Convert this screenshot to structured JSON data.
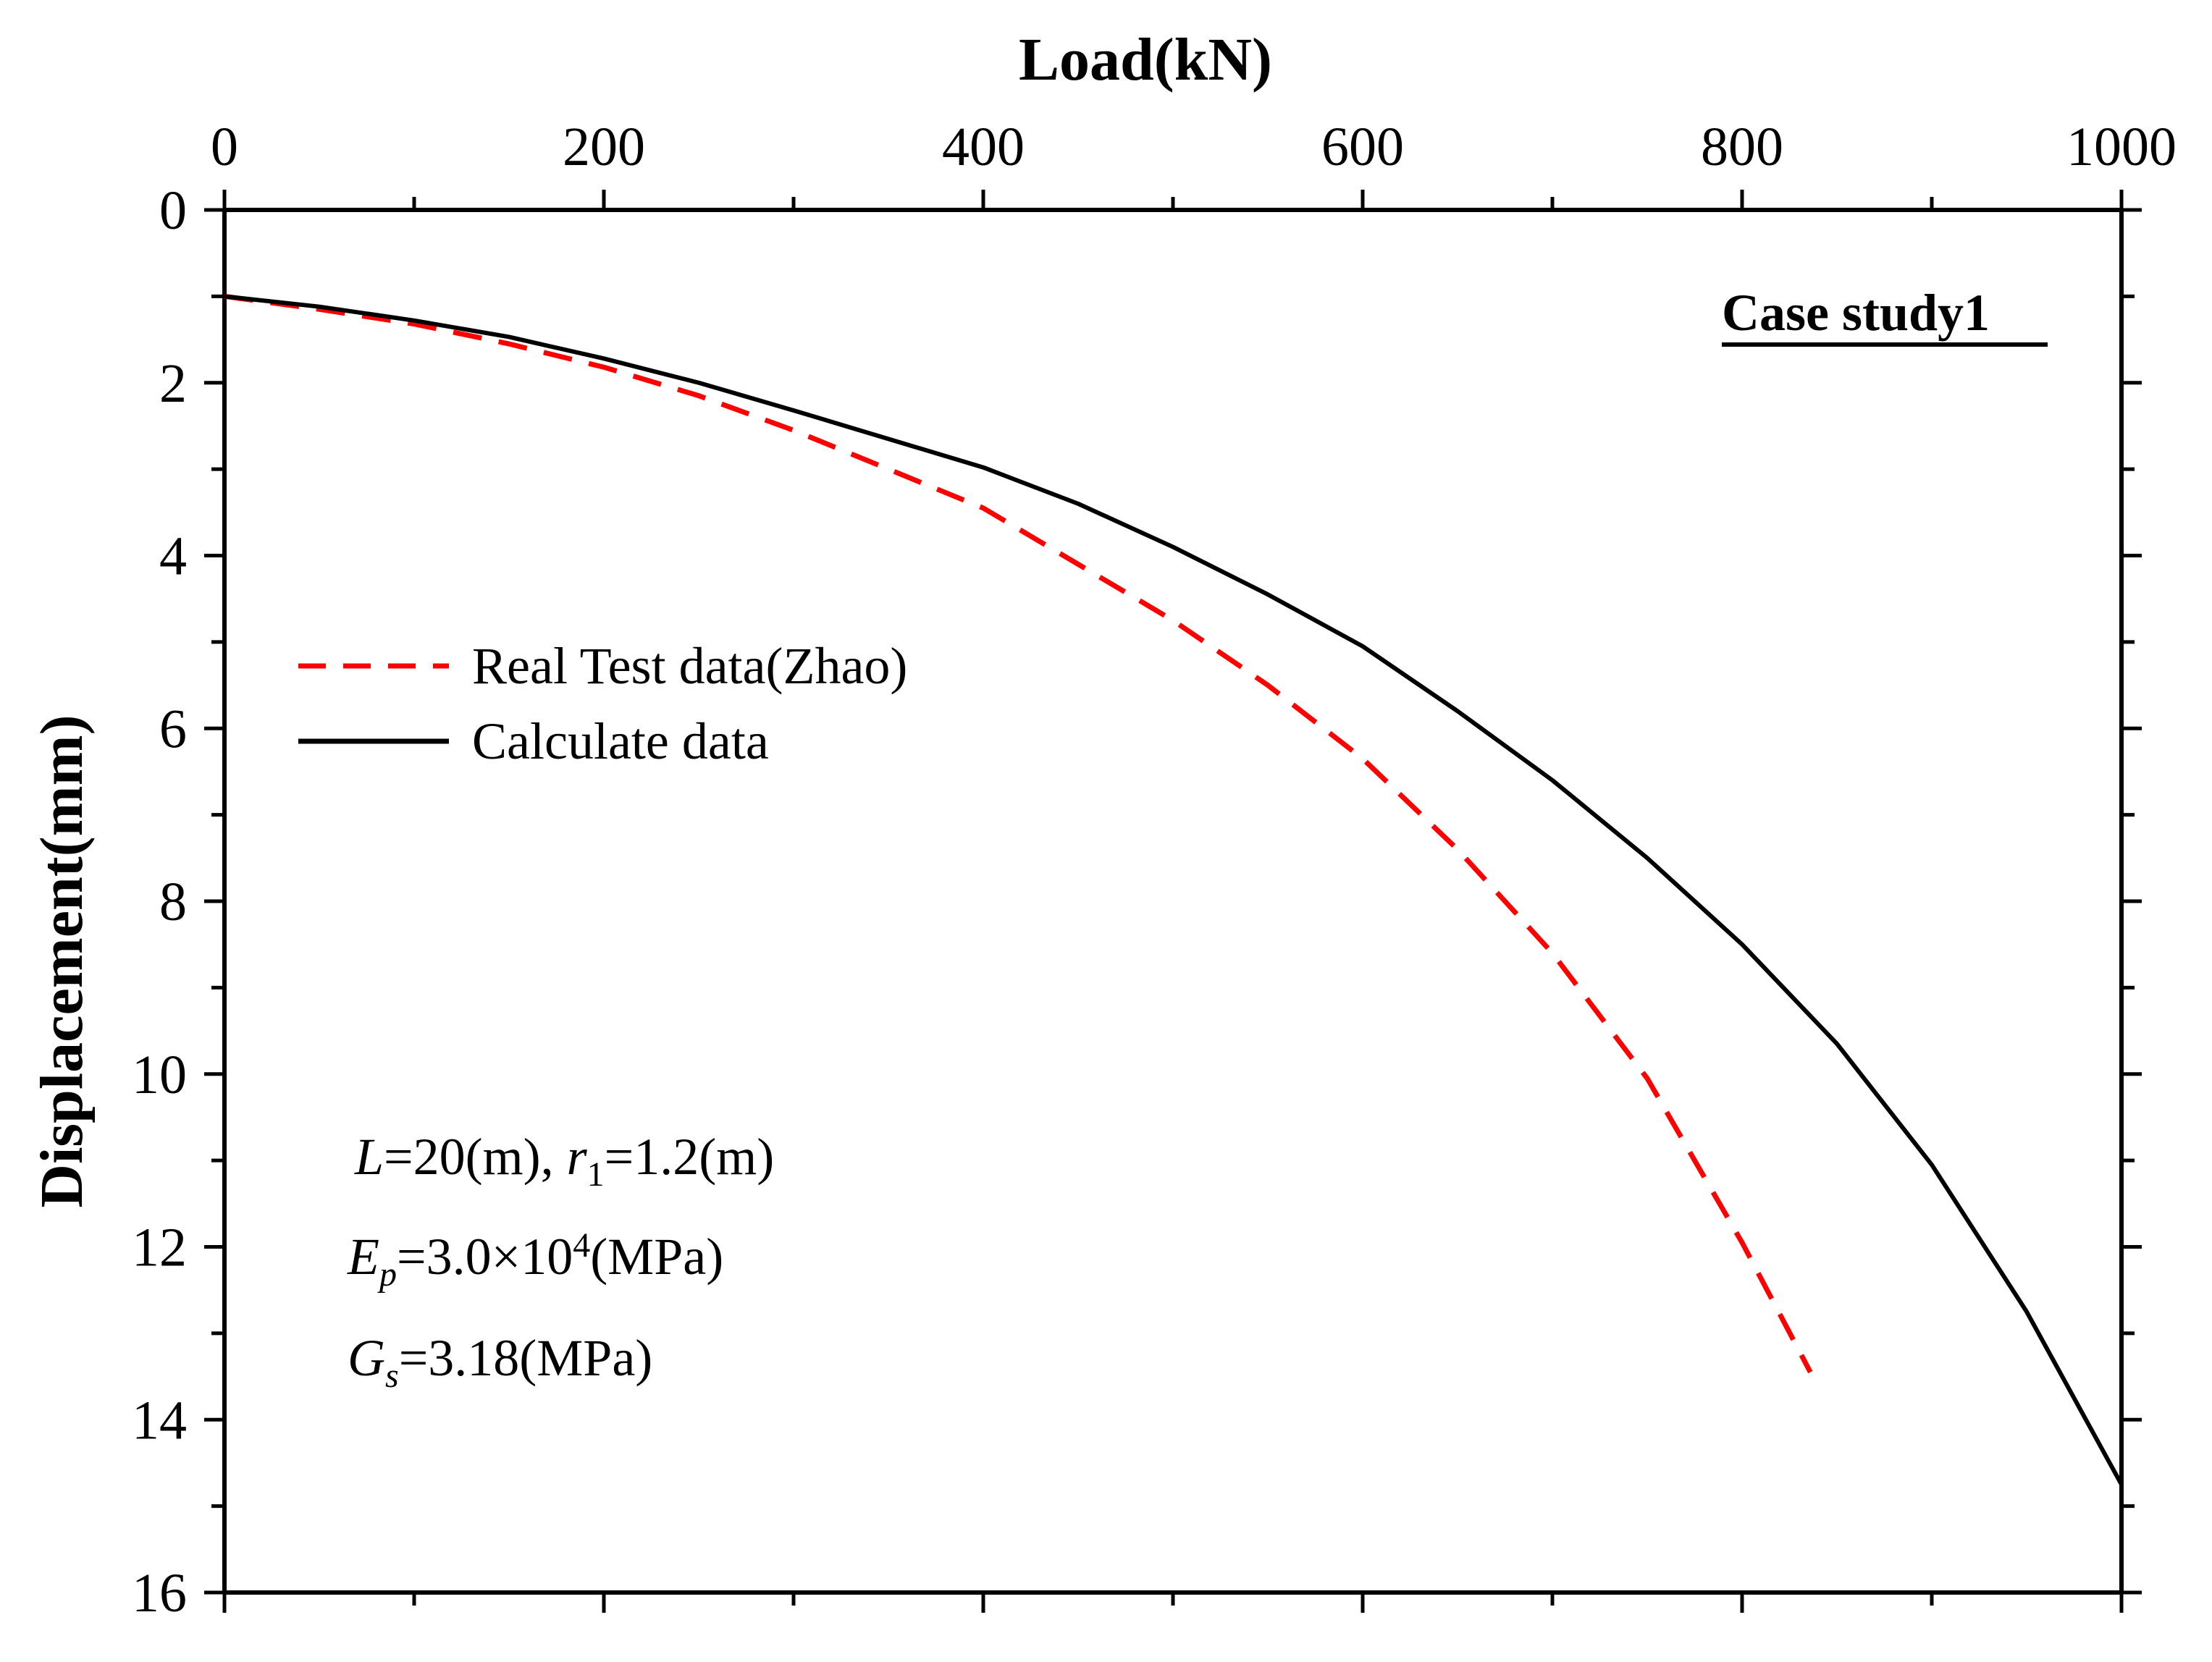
{
  "chart_data": {
    "type": "line",
    "title": "",
    "xlabel": "Load(kN)",
    "ylabel": "Displacement(mm)",
    "xlim": [
      0,
      1000
    ],
    "ylim": [
      16,
      0
    ],
    "x_axis_position": "top",
    "y_axis_inverted": true,
    "xticks": [
      0,
      200,
      400,
      600,
      800,
      1000
    ],
    "xtick_labels": [
      "0",
      "200",
      "400",
      "600",
      "800",
      "1000"
    ],
    "yticks": [
      0,
      2,
      4,
      6,
      8,
      10,
      12,
      14,
      16
    ],
    "ytick_labels": [
      "0",
      "2",
      "4",
      "6",
      "8",
      "10",
      "12",
      "14",
      "16"
    ],
    "grid": false,
    "legend_position": "left",
    "case_label": "Case study1",
    "series": [
      {
        "name": "Real Test data(Zhao)",
        "style": "dashed",
        "color": "#ff0000",
        "x": [
          0,
          50,
          100,
          150,
          200,
          250,
          300,
          350,
          400,
          450,
          500,
          550,
          600,
          650,
          700,
          750,
          800,
          836
        ],
        "y": [
          1.0,
          1.15,
          1.32,
          1.55,
          1.82,
          2.15,
          2.55,
          3.0,
          3.45,
          4.1,
          4.75,
          5.5,
          6.35,
          7.4,
          8.6,
          10.05,
          11.95,
          13.45
        ]
      },
      {
        "name": "Calculate data",
        "style": "solid",
        "color": "#000000",
        "x": [
          0,
          50,
          100,
          150,
          200,
          250,
          300,
          350,
          400,
          450,
          500,
          550,
          600,
          650,
          700,
          750,
          800,
          850,
          900,
          950,
          1000
        ],
        "y": [
          1.0,
          1.12,
          1.28,
          1.47,
          1.72,
          2.0,
          2.32,
          2.65,
          2.98,
          3.4,
          3.9,
          4.45,
          5.05,
          5.8,
          6.6,
          7.5,
          8.5,
          9.65,
          11.05,
          12.75,
          14.75
        ]
      }
    ],
    "annotations": [
      {
        "id": "params-1",
        "parts": [
          {
            "text": "L",
            "style": "italic"
          },
          {
            "text": "=20(m), ",
            "style": "normal"
          },
          {
            "text": "r",
            "style": "italic"
          },
          {
            "text": "1",
            "style": "sub"
          },
          {
            "text": "=1.2(m)",
            "style": "normal"
          }
        ]
      },
      {
        "id": "params-2",
        "parts": [
          {
            "text": "E",
            "style": "italic"
          },
          {
            "text": "p",
            "style": "italic-sub"
          },
          {
            "text": "=3.0×10",
            "style": "normal"
          },
          {
            "text": "4",
            "style": "sup"
          },
          {
            "text": "(MPa)",
            "style": "normal"
          }
        ]
      },
      {
        "id": "params-3",
        "parts": [
          {
            "text": "G",
            "style": "italic"
          },
          {
            "text": "s",
            "style": "italic-sub"
          },
          {
            "text": "=3.18(MPa)",
            "style": "normal"
          }
        ]
      }
    ]
  }
}
